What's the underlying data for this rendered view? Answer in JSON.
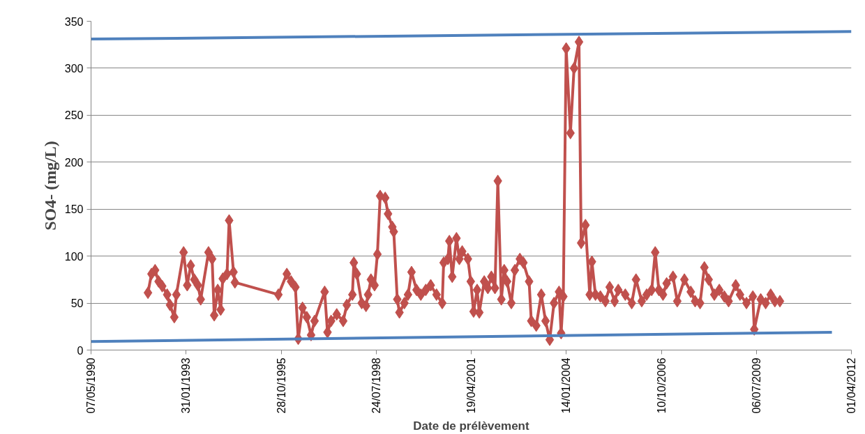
{
  "chart_data": {
    "type": "line",
    "xlabel": "Date de prélèvement",
    "ylabel": "SO4- (mg/L)",
    "xlim": [
      "1990-05-07",
      "2012-04-01"
    ],
    "xticks": [
      {
        "value": "1990-05-07",
        "label": "07/05/1990"
      },
      {
        "value": "1993-01-31",
        "label": "31/01/1993"
      },
      {
        "value": "1995-10-28",
        "label": "28/10/1995"
      },
      {
        "value": "1998-07-24",
        "label": "24/07/1998"
      },
      {
        "value": "2001-04-19",
        "label": "19/04/2001"
      },
      {
        "value": "2004-01-14",
        "label": "14/01/2004"
      },
      {
        "value": "2006-10-10",
        "label": "10/10/2006"
      },
      {
        "value": "2009-07-06",
        "label": "06/07/2009"
      },
      {
        "value": "2012-04-01",
        "label": "01/04/2012"
      }
    ],
    "ylim": [
      0,
      350
    ],
    "yticks": [
      0,
      50,
      100,
      150,
      200,
      250,
      300,
      350
    ],
    "grid": "y",
    "series": [
      {
        "marker": "diamond",
        "color": "#c0504d",
        "x": [
          "1991-12-27",
          "1992-02-02",
          "1992-03-11",
          "1992-04-17",
          "1992-05-25",
          "1992-07-16",
          "1992-08-15",
          "1992-09-29",
          "1992-10-21",
          "1993-01-05",
          "1993-02-12",
          "1993-03-21",
          "1993-04-28",
          "1993-06-04",
          "1993-07-04",
          "1993-09-24",
          "1993-11-01",
          "1993-11-23",
          "1993-12-30",
          "1994-01-30",
          "1994-02-21",
          "1994-04-07",
          "1994-04-29",
          "1994-06-14",
          "1994-06-29",
          "1995-09-29",
          "1995-12-27",
          "1996-02-10",
          "1996-03-26",
          "1996-04-25",
          "1996-06-09",
          "1996-07-24",
          "1996-09-07",
          "1996-10-14",
          "1997-01-28",
          "1997-02-27",
          "1997-04-06",
          "1997-06-04",
          "1997-08-11",
          "1997-09-18",
          "1997-11-16",
          "1997-12-01",
          "1998-01-01",
          "1998-02-22",
          "1998-04-08",
          "1998-04-30",
          "1998-05-30",
          "1998-07-07",
          "1998-08-06",
          "1998-09-04",
          "1998-10-27",
          "1998-11-26",
          "1999-01-10",
          "1999-01-25",
          "1999-03-03",
          "1999-03-26",
          "1999-05-17",
          "1999-06-24",
          "1999-07-31",
          "1999-09-22",
          "1999-11-06",
          "1999-12-28",
          "2000-02-18",
          "2000-04-19",
          "2000-06-18",
          "2000-07-03",
          "2000-08-17",
          "2000-09-01",
          "2000-10-01",
          "2000-11-15",
          "2000-12-15",
          "2001-01-14",
          "2001-03-15",
          "2001-04-14",
          "2001-05-14",
          "2001-06-20",
          "2001-07-13",
          "2001-09-03",
          "2001-10-11",
          "2001-11-17",
          "2001-12-25",
          "2002-01-24",
          "2002-03-02",
          "2002-04-01",
          "2002-05-01",
          "2002-06-15",
          "2002-07-22",
          "2002-09-13",
          "2002-10-20",
          "2002-12-19",
          "2003-01-11",
          "2003-03-04",
          "2003-04-26",
          "2003-06-10",
          "2003-07-24",
          "2003-09-07",
          "2003-10-30",
          "2003-11-21",
          "2003-12-14",
          "2004-01-13",
          "2004-02-27",
          "2004-04-05",
          "2004-05-27",
          "2004-06-19",
          "2004-08-03",
          "2004-09-17",
          "2004-10-10",
          "2004-11-16",
          "2005-01-07",
          "2005-03-01",
          "2005-04-15",
          "2005-06-06",
          "2005-07-14",
          "2005-09-26",
          "2005-12-03",
          "2006-01-17",
          "2006-03-18",
          "2006-05-09",
          "2006-07-01",
          "2006-08-07",
          "2006-09-14",
          "2006-10-28",
          "2006-12-05",
          "2007-02-10",
          "2007-03-27",
          "2007-06-10",
          "2007-08-16",
          "2007-10-01",
          "2007-11-22",
          "2008-01-06",
          "2008-02-20",
          "2008-04-20",
          "2008-06-11",
          "2008-08-03",
          "2008-09-17",
          "2008-12-01",
          "2009-01-15",
          "2009-03-24",
          "2009-05-30",
          "2009-06-14",
          "2009-08-21",
          "2009-10-12",
          "2009-12-04",
          "2010-01-17",
          "2010-03-11"
        ],
        "values": [
          61,
          81,
          85,
          73,
          68,
          59,
          48,
          35,
          59,
          104,
          69,
          90,
          75,
          69,
          54,
          104,
          97,
          37,
          64,
          43,
          76,
          81,
          138,
          83,
          72,
          59,
          81,
          73,
          67,
          12,
          45,
          35,
          16,
          31,
          62,
          19,
          31,
          38,
          31,
          48,
          59,
          93,
          81,
          50,
          47,
          59,
          75,
          69,
          102,
          164,
          162,
          145,
          131,
          126,
          54,
          40,
          50,
          59,
          83,
          64,
          59,
          64,
          69,
          59,
          50,
          93,
          97,
          116,
          78,
          119,
          97,
          105,
          97,
          73,
          41,
          64,
          40,
          73,
          66,
          78,
          66,
          180,
          54,
          85,
          73,
          50,
          85,
          97,
          93,
          73,
          31,
          26,
          59,
          31,
          11,
          50,
          62,
          18,
          57,
          321,
          231,
          300,
          328,
          114,
          133,
          59,
          94,
          59,
          57,
          52,
          67,
          52,
          64,
          59,
          50,
          75,
          52,
          59,
          64,
          104,
          64,
          59,
          71,
          78,
          52,
          75,
          62,
          52,
          50,
          88,
          75,
          59,
          64,
          57,
          52,
          69,
          59,
          50,
          57,
          22,
          54,
          50,
          59,
          52,
          52
        ]
      },
      {
        "marker": "none",
        "color": "#4f81bd",
        "x": [
          "1990-05-07",
          "2012-04-01"
        ],
        "values": [
          331,
          339
        ]
      },
      {
        "marker": "none",
        "color": "#4f81bd",
        "x": [
          "1990-05-07",
          "2011-09-09"
        ],
        "values": [
          9,
          19
        ]
      }
    ]
  }
}
